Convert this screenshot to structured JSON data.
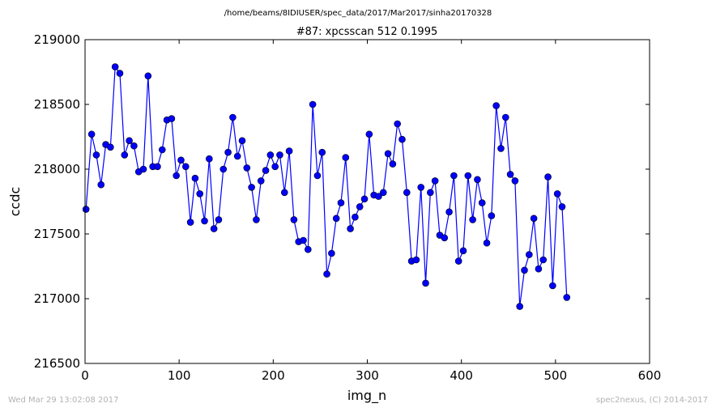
{
  "figure": {
    "suptitle": "/home/beams/8IDIUSER/spec_data/2017/Mar2017/sinha20170328",
    "footer_left": "Wed Mar 29 13:02:08 2017",
    "footer_right": "spec2nexus, (C) 2014-2017"
  },
  "chart_data": {
    "type": "line",
    "title": "#87: xpcsscan 512 0.1995",
    "xlabel": "img_n",
    "ylabel": "ccdc",
    "xlim": [
      0,
      600
    ],
    "ylim": [
      216500,
      219000
    ],
    "xticks": [
      0,
      100,
      200,
      300,
      400,
      500,
      600
    ],
    "yticks": [
      216500,
      217000,
      217500,
      218000,
      218500,
      219000
    ],
    "marker": "circle",
    "color": "#0000ff",
    "grid": false,
    "series": [
      {
        "x": [
          1,
          7,
          12,
          17,
          22,
          27,
          32,
          37,
          42,
          47,
          52,
          57,
          62,
          67,
          72,
          77,
          82,
          87,
          92,
          97,
          102,
          107,
          112,
          117,
          122,
          127,
          132,
          137,
          142,
          147,
          152,
          157,
          162,
          167,
          172,
          177,
          182,
          187,
          192,
          197,
          202,
          207,
          212,
          217,
          222,
          227,
          232,
          237,
          242,
          247,
          252,
          257,
          262,
          267,
          272,
          277,
          282,
          287,
          292,
          297,
          302,
          307,
          312,
          317,
          322,
          327,
          332,
          337,
          342,
          347,
          352,
          357,
          362,
          367,
          372,
          377,
          382,
          387,
          392,
          397,
          402,
          407,
          412,
          417,
          422,
          427,
          432,
          437,
          442,
          447,
          452,
          457,
          462,
          467,
          472,
          477,
          482,
          487,
          492,
          497,
          502,
          507,
          512
        ],
        "y": [
          217690,
          218270,
          218110,
          217880,
          218190,
          218170,
          218790,
          218740,
          218110,
          218220,
          218180,
          217980,
          218000,
          218720,
          218020,
          218020,
          218150,
          218380,
          218390,
          217950,
          218070,
          218020,
          217590,
          217930,
          217810,
          217600,
          218080,
          217540,
          217610,
          218000,
          218130,
          218400,
          218100,
          218220,
          218010,
          217860,
          217610,
          217910,
          217990,
          218110,
          218020,
          218110,
          217820,
          218140,
          217610,
          217440,
          217450,
          217380,
          218500,
          217950,
          218130,
          217190,
          217350,
          217620,
          217740,
          218090,
          217540,
          217630,
          217710,
          217770,
          218270,
          217800,
          217790,
          217820,
          218120,
          218040,
          218350,
          218230,
          217820,
          217290,
          217300,
          217860,
          217120,
          217820,
          217910,
          217490,
          217470,
          217670,
          217950,
          217290,
          217370,
          217950,
          217610,
          217920,
          217740,
          217430,
          217640,
          218490,
          218160,
          218400,
          217960,
          217910,
          216940,
          217220,
          217340,
          217620,
          217230,
          217300,
          217940,
          217100,
          217810,
          217710,
          217010
        ]
      }
    ]
  }
}
